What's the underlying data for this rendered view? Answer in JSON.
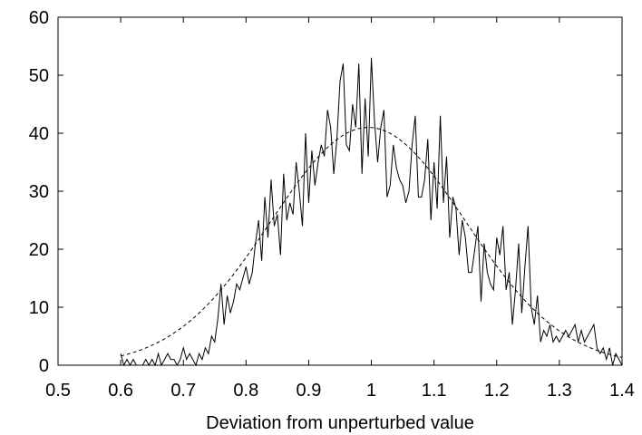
{
  "chart_data": {
    "type": "line",
    "title": "",
    "xlabel": "Deviation from unperturbed value",
    "ylabel": "",
    "xlim": [
      0.5,
      1.4
    ],
    "ylim": [
      0,
      60
    ],
    "xticks": [
      "0.5",
      "0.6",
      "0.7",
      "0.8",
      "0.9",
      "1",
      "1.1",
      "1.2",
      "1.3",
      "1.4"
    ],
    "yticks": [
      "0",
      "10",
      "20",
      "30",
      "40",
      "50",
      "60"
    ],
    "grid": false,
    "legend": "none",
    "series": [
      {
        "style": "solid",
        "color": "#000000",
        "x": [
          0.6,
          0.605,
          0.61,
          0.615,
          0.62,
          0.625,
          0.63,
          0.635,
          0.64,
          0.645,
          0.65,
          0.655,
          0.66,
          0.665,
          0.67,
          0.675,
          0.68,
          0.685,
          0.69,
          0.695,
          0.7,
          0.705,
          0.71,
          0.715,
          0.72,
          0.725,
          0.73,
          0.735,
          0.74,
          0.745,
          0.75,
          0.755,
          0.76,
          0.765,
          0.77,
          0.775,
          0.78,
          0.785,
          0.79,
          0.795,
          0.8,
          0.805,
          0.81,
          0.815,
          0.82,
          0.825,
          0.83,
          0.835,
          0.84,
          0.845,
          0.85,
          0.855,
          0.86,
          0.865,
          0.87,
          0.875,
          0.88,
          0.885,
          0.89,
          0.895,
          0.9,
          0.905,
          0.91,
          0.915,
          0.92,
          0.925,
          0.93,
          0.935,
          0.94,
          0.945,
          0.95,
          0.955,
          0.96,
          0.965,
          0.97,
          0.975,
          0.98,
          0.985,
          0.99,
          0.995,
          1.0,
          1.005,
          1.01,
          1.015,
          1.02,
          1.025,
          1.03,
          1.035,
          1.04,
          1.045,
          1.05,
          1.055,
          1.06,
          1.065,
          1.07,
          1.075,
          1.08,
          1.085,
          1.09,
          1.095,
          1.1,
          1.105,
          1.11,
          1.115,
          1.12,
          1.125,
          1.13,
          1.135,
          1.14,
          1.145,
          1.15,
          1.155,
          1.16,
          1.165,
          1.17,
          1.175,
          1.18,
          1.185,
          1.19,
          1.195,
          1.2,
          1.205,
          1.21,
          1.215,
          1.22,
          1.225,
          1.23,
          1.235,
          1.24,
          1.245,
          1.25,
          1.255,
          1.26,
          1.265,
          1.27,
          1.275,
          1.28,
          1.285,
          1.29,
          1.295,
          1.3,
          1.305,
          1.31,
          1.315,
          1.32,
          1.325,
          1.33,
          1.335,
          1.34,
          1.345,
          1.35,
          1.355,
          1.36,
          1.365,
          1.37,
          1.375,
          1.38,
          1.385,
          1.39,
          1.395,
          1.4
        ],
        "y": [
          2,
          0,
          1,
          0,
          1,
          0,
          0,
          0,
          1,
          0,
          1,
          0,
          2,
          0,
          1,
          2,
          1,
          1,
          0,
          1,
          3,
          1,
          2,
          1,
          0,
          2,
          1,
          3,
          2,
          5,
          4,
          8,
          14,
          7,
          12,
          9,
          11,
          14,
          13,
          15,
          17,
          14,
          16,
          21,
          25,
          18,
          29,
          22,
          32,
          24,
          26,
          19,
          33,
          25,
          28,
          26,
          35,
          30,
          24,
          40,
          28,
          37,
          31,
          35,
          38,
          36,
          44,
          41,
          33,
          39,
          49,
          52,
          38,
          37,
          45,
          41,
          52,
          33,
          46,
          36,
          53,
          42,
          35,
          41,
          44,
          29,
          31,
          38,
          34,
          32,
          31,
          28,
          30,
          38,
          43,
          29,
          29,
          32,
          39,
          25,
          35,
          27,
          43,
          28,
          36,
          22,
          29,
          27,
          19,
          25,
          22,
          16,
          16,
          20,
          24,
          11,
          21,
          16,
          14,
          13,
          22,
          19,
          24,
          13,
          16,
          7,
          13,
          21,
          9,
          17,
          24,
          10,
          7,
          12,
          4,
          6,
          5,
          7,
          4,
          5,
          4,
          5,
          6,
          5,
          6,
          7,
          4,
          6,
          4,
          5,
          6,
          7,
          3,
          2,
          3,
          1,
          3,
          0,
          2,
          1,
          0
        ],
        "label": ""
      },
      {
        "style": "dashed",
        "color": "#000000",
        "model": "gaussian",
        "peak": 41,
        "mu": 0.995,
        "sigma": 0.155,
        "x_range": [
          0.6,
          1.4
        ],
        "label": ""
      }
    ]
  }
}
